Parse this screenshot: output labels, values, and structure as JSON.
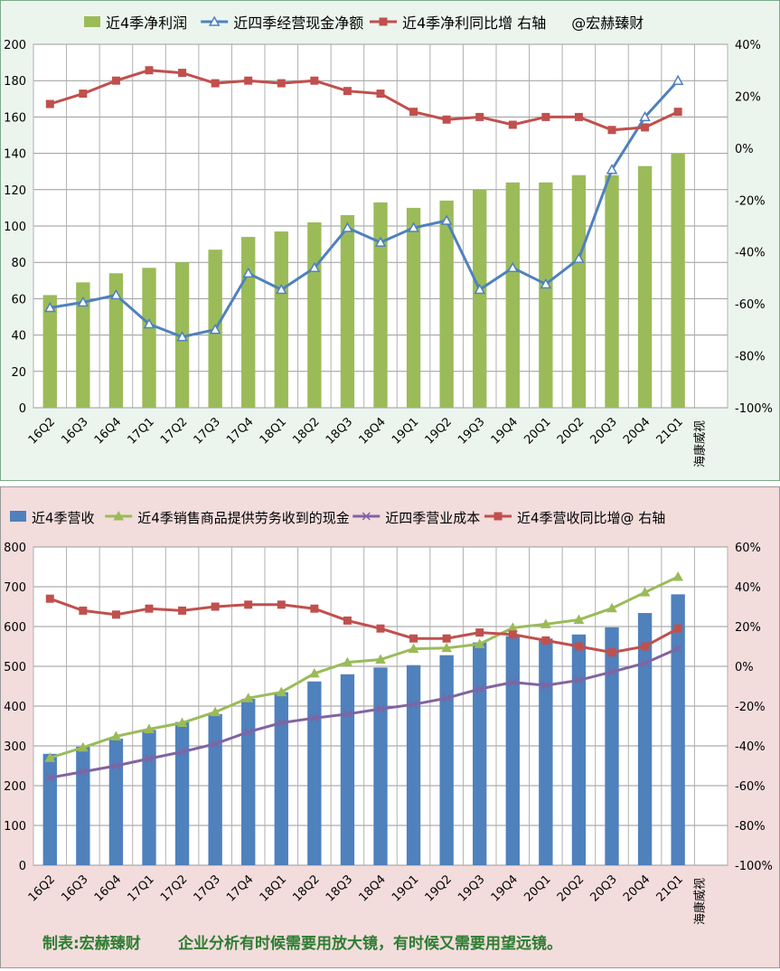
{
  "chart_data": [
    {
      "type": "bar",
      "categories": [
        "16Q2",
        "16Q3",
        "16Q4",
        "17Q1",
        "17Q2",
        "17Q3",
        "17Q4",
        "18Q1",
        "18Q2",
        "18Q3",
        "18Q4",
        "19Q1",
        "19Q2",
        "19Q3",
        "19Q4",
        "20Q1",
        "20Q2",
        "20Q3",
        "20Q4",
        "21Q1"
      ],
      "series": [
        {
          "name": "近4季净利润",
          "type": "bar",
          "axis": "left",
          "color": "#9bbb59",
          "values": [
            62,
            69,
            74,
            77,
            80,
            87,
            94,
            97,
            102,
            106,
            113,
            110,
            114,
            120,
            124,
            124,
            128,
            128,
            133,
            140
          ]
        },
        {
          "name": "近四季经营现金净额",
          "type": "line",
          "axis": "left",
          "color": "#4f81bd",
          "values": [
            55,
            58,
            62,
            46,
            39,
            43,
            74,
            65,
            77,
            99,
            91,
            99,
            103,
            65,
            77,
            68,
            82,
            131,
            160,
            180
          ]
        },
        {
          "name": "近4季净利同比增 右轴",
          "type": "line",
          "axis": "right",
          "color": "#c0504d",
          "values": [
            17,
            21,
            26,
            30,
            29,
            25,
            26,
            25,
            26,
            22,
            21,
            14,
            11,
            12,
            9,
            12,
            12,
            7,
            8,
            14
          ]
        }
      ],
      "legend_extra": "@宏赫臻财",
      "ylim": [
        0,
        200
      ],
      "yticks": [
        "0",
        "20",
        "40",
        "60",
        "80",
        "100",
        "120",
        "140",
        "160",
        "180",
        "200"
      ],
      "y2lim": [
        -100,
        40
      ],
      "y2ticks": [
        "-100%",
        "-80%",
        "-60%",
        "-40%",
        "-20%",
        "0%",
        "20%",
        "40%"
      ],
      "watermark": "海康威视",
      "grid": true,
      "legend_position": "top"
    },
    {
      "type": "bar",
      "categories": [
        "16Q2",
        "16Q3",
        "16Q4",
        "17Q1",
        "17Q2",
        "17Q3",
        "17Q4",
        "18Q1",
        "18Q2",
        "18Q3",
        "18Q4",
        "19Q1",
        "19Q2",
        "19Q3",
        "19Q4",
        "20Q1",
        "20Q2",
        "20Q3",
        "20Q4",
        "21Q1"
      ],
      "series": [
        {
          "name": "近4季营收",
          "type": "bar",
          "axis": "left",
          "color": "#4f81bd",
          "values": [
            280,
            298,
            318,
            340,
            360,
            380,
            418,
            435,
            462,
            480,
            497,
            503,
            528,
            560,
            576,
            570,
            580,
            598,
            634,
            681
          ]
        },
        {
          "name": "近4季销售商品提供劳务收到的现金",
          "type": "line",
          "axis": "left",
          "color": "#9bbb59",
          "values": [
            270,
            296,
            324,
            342,
            358,
            385,
            420,
            435,
            482,
            510,
            517,
            544,
            546,
            556,
            597,
            606,
            617,
            646,
            686,
            725
          ]
        },
        {
          "name": "近四季营业成本",
          "type": "line",
          "axis": "left",
          "color": "#8064a2",
          "values": [
            220,
            235,
            250,
            268,
            285,
            305,
            335,
            358,
            370,
            380,
            393,
            404,
            420,
            443,
            460,
            452,
            465,
            486,
            508,
            545
          ]
        },
        {
          "name": "近4季营收同比增@ 右轴",
          "type": "line",
          "axis": "right",
          "color": "#c0504d",
          "values": [
            34,
            28,
            26,
            29,
            28,
            30,
            31,
            31,
            29,
            23,
            19,
            14,
            14,
            17,
            16,
            13,
            10,
            7,
            10,
            19
          ]
        }
      ],
      "ylim": [
        0,
        800
      ],
      "yticks": [
        "0",
        "100",
        "200",
        "300",
        "400",
        "500",
        "600",
        "700",
        "800"
      ],
      "y2lim": [
        -100,
        60
      ],
      "y2ticks": [
        "-100%",
        "-80%",
        "-60%",
        "-40%",
        "-20%",
        "0%",
        "20%",
        "40%",
        "60%"
      ],
      "watermark": "海康威视",
      "grid": true,
      "legend_position": "top"
    }
  ],
  "footer": {
    "label": "制表:宏赫臻财",
    "text": "企业分析有时候需要用放大镜，有时候又需要用望远镜。"
  }
}
